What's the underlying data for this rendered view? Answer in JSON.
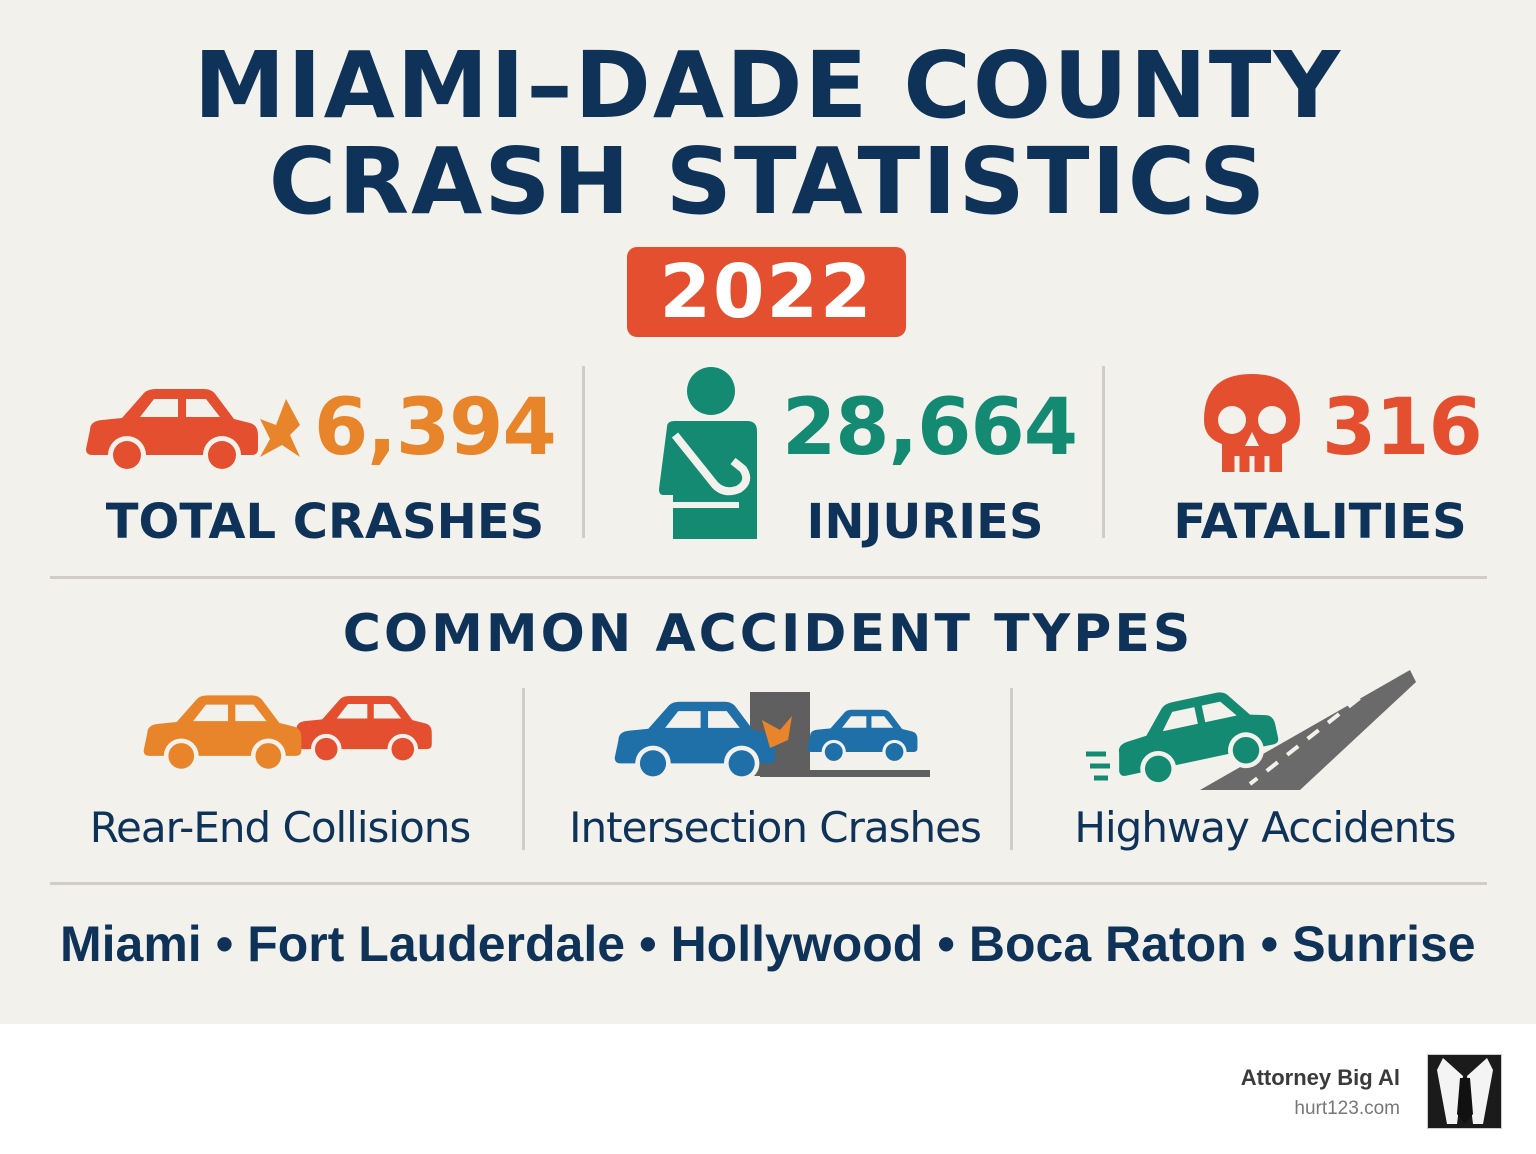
{
  "title": {
    "line1": "MIAMI–DADE COUNTY",
    "line2": "CRASH STATISTICS"
  },
  "year": "2022",
  "stats": [
    {
      "value": "6,394",
      "label": "TOTAL CRASHES",
      "icon": "car-crash-icon",
      "color": "#e8842a"
    },
    {
      "value": "28,664",
      "label": "INJURIES",
      "icon": "injured-person-icon",
      "color": "#148a72"
    },
    {
      "value": "316",
      "label": "FATALITIES",
      "icon": "skull-icon",
      "color": "#e4502f"
    }
  ],
  "section_title": "COMMON ACCIDENT TYPES",
  "accident_types": [
    {
      "label": "Rear-End Collisions",
      "icon": "rear-end-cars-icon"
    },
    {
      "label": "Intersection Crashes",
      "icon": "intersection-crash-icon"
    },
    {
      "label": "Highway Accidents",
      "icon": "highway-car-icon"
    }
  ],
  "cities": [
    "Miami",
    "Fort Lauderdale",
    "Hollywood",
    "Boca Raton",
    "Sunrise"
  ],
  "city_separator": "•",
  "footer": {
    "brand": "Attorney Big Al",
    "url": "hurt123.com",
    "logo_icon": "suit-tie-logo"
  },
  "colors": {
    "navy": "#0f3358",
    "orange": "#e8842a",
    "red": "#e4502f",
    "green": "#148a72",
    "blue": "#1f6fa8",
    "background": "#f3f1ec"
  }
}
